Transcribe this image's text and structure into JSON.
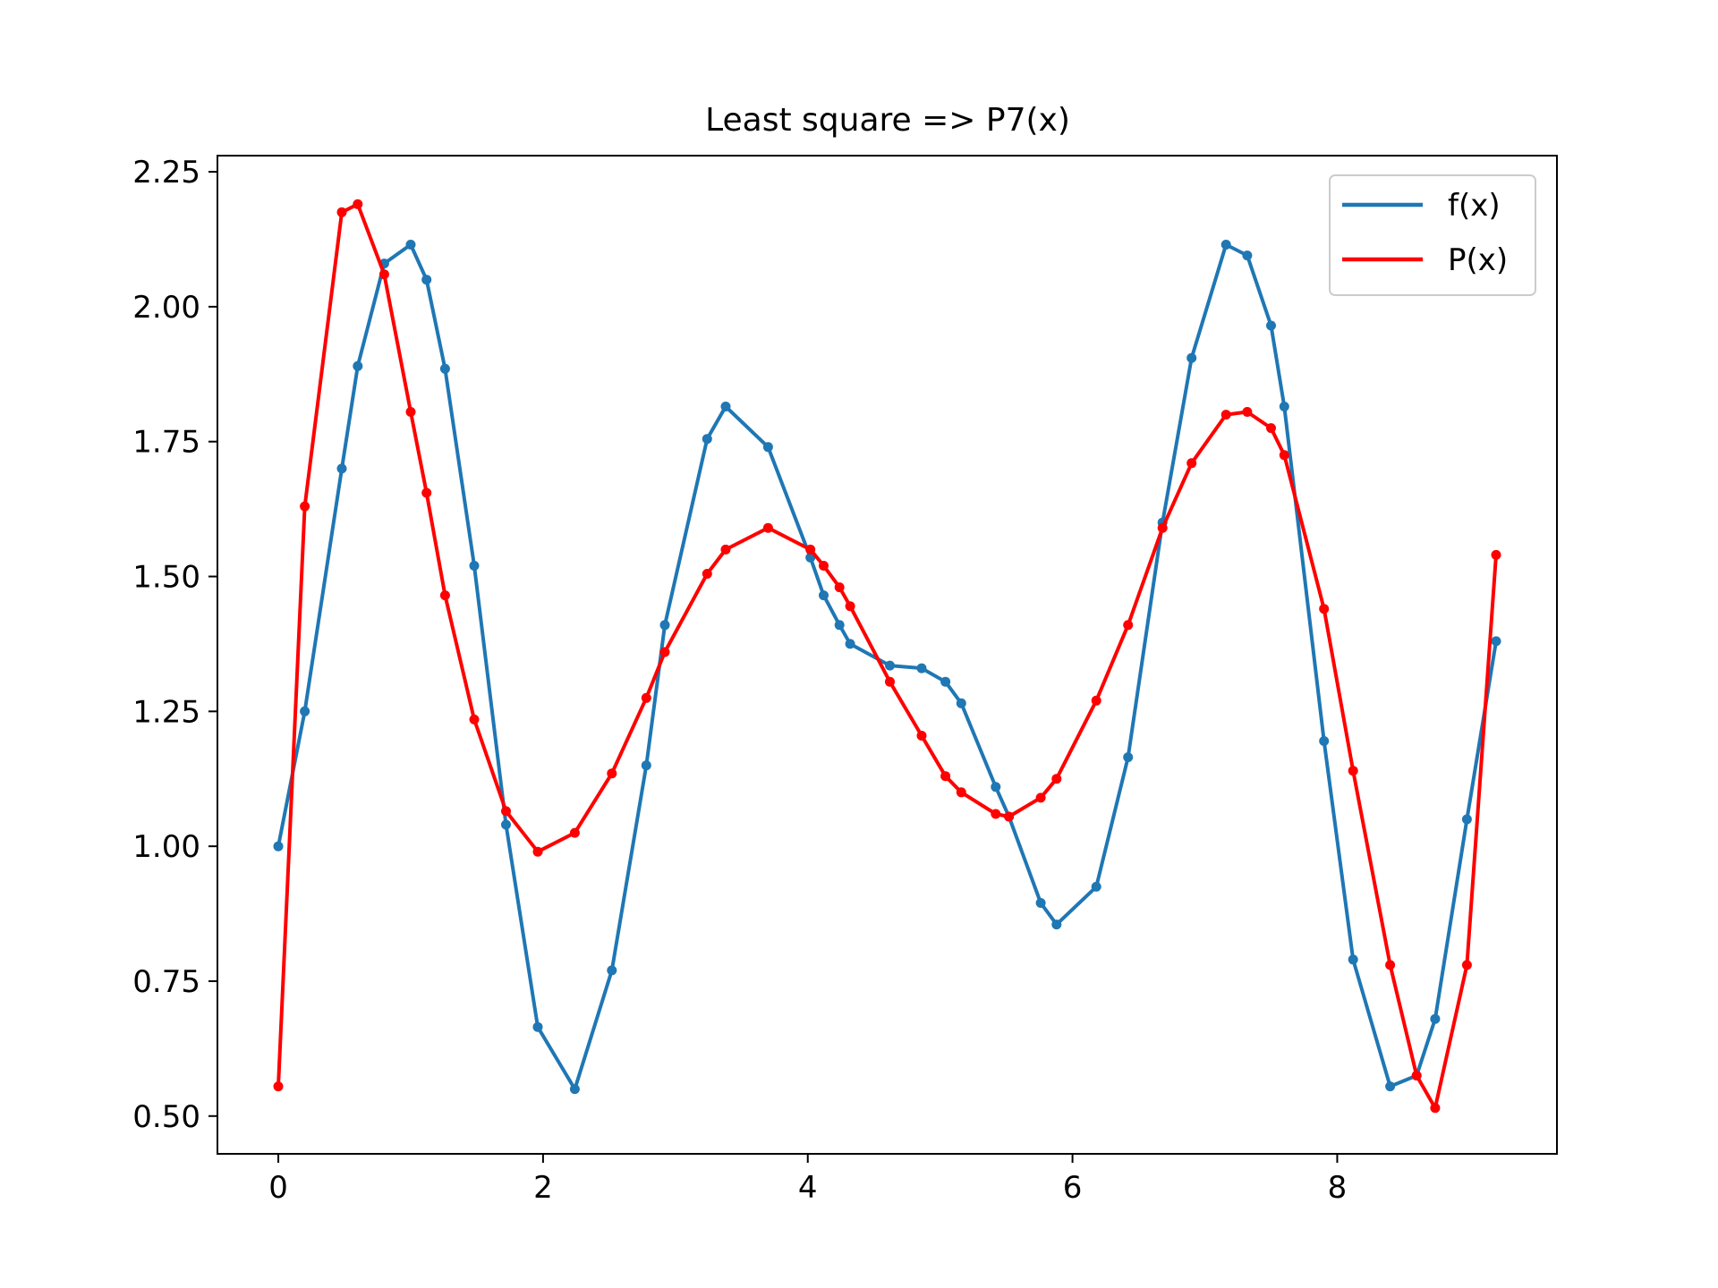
{
  "chart_data": {
    "type": "line",
    "title": "Least square => P7(x)",
    "xlabel": "",
    "ylabel": "",
    "xlim": [
      -0.46,
      9.66
    ],
    "ylim": [
      0.43,
      2.28
    ],
    "xticks": [
      0,
      2,
      4,
      6,
      8
    ],
    "xtick_labels": [
      "0",
      "2",
      "4",
      "6",
      "8"
    ],
    "yticks": [
      0.5,
      0.75,
      1.0,
      1.25,
      1.5,
      1.75,
      2.0,
      2.25
    ],
    "ytick_labels": [
      "0.50",
      "0.75",
      "1.00",
      "1.25",
      "1.50",
      "1.75",
      "2.00",
      "2.25"
    ],
    "grid": false,
    "legend_position": "top-right",
    "series": [
      {
        "name": "f(x)",
        "color": "#1f77b4",
        "marker": "dot",
        "points": [
          [
            0.0,
            1.0
          ],
          [
            0.2,
            1.25
          ],
          [
            0.48,
            1.7
          ],
          [
            0.6,
            1.89
          ],
          [
            0.8,
            2.08
          ],
          [
            1.0,
            2.115
          ],
          [
            1.12,
            2.05
          ],
          [
            1.26,
            1.885
          ],
          [
            1.48,
            1.52
          ],
          [
            1.72,
            1.04
          ],
          [
            1.96,
            0.665
          ],
          [
            2.24,
            0.55
          ],
          [
            2.52,
            0.77
          ],
          [
            2.78,
            1.15
          ],
          [
            2.92,
            1.41
          ],
          [
            3.24,
            1.755
          ],
          [
            3.38,
            1.815
          ],
          [
            3.7,
            1.74
          ],
          [
            4.02,
            1.535
          ],
          [
            4.12,
            1.465
          ],
          [
            4.24,
            1.41
          ],
          [
            4.32,
            1.375
          ],
          [
            4.62,
            1.335
          ],
          [
            4.86,
            1.33
          ],
          [
            5.04,
            1.305
          ],
          [
            5.16,
            1.265
          ],
          [
            5.42,
            1.11
          ],
          [
            5.52,
            1.055
          ],
          [
            5.76,
            0.895
          ],
          [
            5.88,
            0.855
          ],
          [
            6.18,
            0.925
          ],
          [
            6.42,
            1.165
          ],
          [
            6.68,
            1.6
          ],
          [
            6.9,
            1.905
          ],
          [
            7.16,
            2.115
          ],
          [
            7.32,
            2.095
          ],
          [
            7.5,
            1.965
          ],
          [
            7.6,
            1.815
          ],
          [
            7.9,
            1.195
          ],
          [
            8.12,
            0.79
          ],
          [
            8.4,
            0.555
          ],
          [
            8.6,
            0.575
          ],
          [
            8.74,
            0.68
          ],
          [
            8.98,
            1.05
          ],
          [
            9.2,
            1.38
          ]
        ]
      },
      {
        "name": "P(x)",
        "color": "#ff0000",
        "marker": "dot",
        "points": [
          [
            0.0,
            0.555
          ],
          [
            0.2,
            1.63
          ],
          [
            0.48,
            2.175
          ],
          [
            0.6,
            2.19
          ],
          [
            0.8,
            2.06
          ],
          [
            1.0,
            1.805
          ],
          [
            1.12,
            1.655
          ],
          [
            1.26,
            1.465
          ],
          [
            1.48,
            1.235
          ],
          [
            1.72,
            1.065
          ],
          [
            1.96,
            0.99
          ],
          [
            2.24,
            1.025
          ],
          [
            2.52,
            1.135
          ],
          [
            2.78,
            1.275
          ],
          [
            2.92,
            1.36
          ],
          [
            3.24,
            1.505
          ],
          [
            3.38,
            1.55
          ],
          [
            3.7,
            1.59
          ],
          [
            4.02,
            1.55
          ],
          [
            4.12,
            1.52
          ],
          [
            4.24,
            1.48
          ],
          [
            4.32,
            1.445
          ],
          [
            4.62,
            1.305
          ],
          [
            4.86,
            1.205
          ],
          [
            5.04,
            1.13
          ],
          [
            5.16,
            1.1
          ],
          [
            5.42,
            1.06
          ],
          [
            5.52,
            1.055
          ],
          [
            5.76,
            1.09
          ],
          [
            5.88,
            1.125
          ],
          [
            6.18,
            1.27
          ],
          [
            6.42,
            1.41
          ],
          [
            6.68,
            1.59
          ],
          [
            6.9,
            1.71
          ],
          [
            7.16,
            1.8
          ],
          [
            7.32,
            1.805
          ],
          [
            7.5,
            1.775
          ],
          [
            7.6,
            1.725
          ],
          [
            7.9,
            1.44
          ],
          [
            8.12,
            1.14
          ],
          [
            8.4,
            0.78
          ],
          [
            8.6,
            0.575
          ],
          [
            8.74,
            0.515
          ],
          [
            8.98,
            0.78
          ],
          [
            9.2,
            1.54
          ]
        ]
      }
    ]
  }
}
